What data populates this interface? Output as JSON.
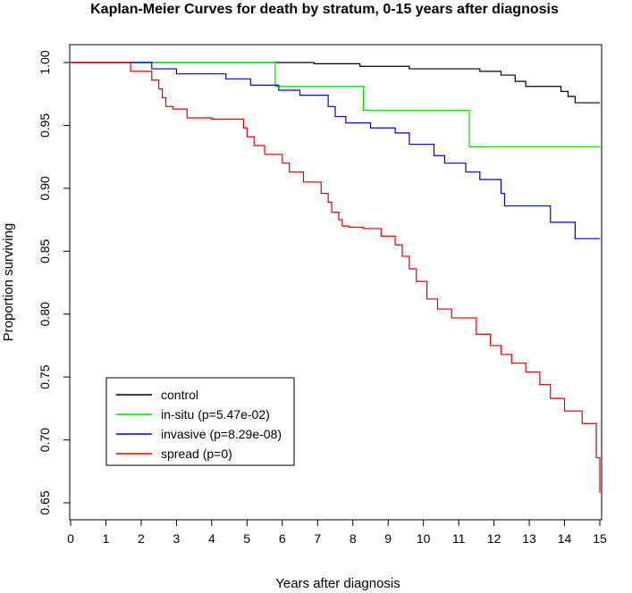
{
  "chart_data": {
    "type": "line",
    "step": true,
    "title": "Kaplan-Meier Curves for death by stratum, 0-15 years after diagnosis",
    "xlabel": "Years after diagnosis",
    "ylabel": "Proportion surviving",
    "xlim": [
      0,
      15
    ],
    "ylim": [
      0.65,
      1.0
    ],
    "xticks": [
      0,
      1,
      2,
      3,
      4,
      5,
      6,
      7,
      8,
      9,
      10,
      11,
      12,
      13,
      14,
      15
    ],
    "yticks": [
      0.65,
      0.7,
      0.75,
      0.8,
      0.85,
      0.9,
      0.95,
      1.0
    ],
    "ytick_labels": [
      "0.65",
      "0.70",
      "0.75",
      "0.80",
      "0.85",
      "0.90",
      "0.95",
      "1.00"
    ],
    "grid": false,
    "legend_position": "bottom-left",
    "series": [
      {
        "name": "control",
        "color": "#000000",
        "x": [
          0,
          6.9,
          8.2,
          9.6,
          11.6,
          12.2,
          12.6,
          12.9,
          13.9,
          14.1,
          14.3,
          15.0
        ],
        "y": [
          1.0,
          0.999,
          0.997,
          0.995,
          0.993,
          0.99,
          0.985,
          0.981,
          0.977,
          0.973,
          0.968,
          0.968
        ]
      },
      {
        "name": "in-situ (p=5.47e-02)",
        "color": "#00dd00",
        "x": [
          0,
          5.8,
          8.3,
          11.3,
          15.0
        ],
        "y": [
          1.0,
          0.981,
          0.962,
          0.933,
          0.933
        ]
      },
      {
        "name": "invasive (p=8.29e-08)",
        "color": "#0000cc",
        "x": [
          0,
          2.3,
          3.0,
          4.4,
          5.1,
          5.9,
          6.5,
          7.3,
          7.5,
          7.8,
          8.5,
          9.2,
          9.6,
          10.3,
          10.6,
          11.2,
          11.6,
          12.2,
          12.3,
          12.7,
          13.6,
          14.3,
          15.0
        ],
        "y": [
          1.0,
          0.995,
          0.991,
          0.987,
          0.982,
          0.978,
          0.974,
          0.965,
          0.957,
          0.952,
          0.948,
          0.944,
          0.935,
          0.926,
          0.92,
          0.913,
          0.907,
          0.896,
          0.886,
          0.886,
          0.873,
          0.86,
          0.86
        ]
      },
      {
        "name": "spread (p=0)",
        "color": "#dd0000",
        "x": [
          0,
          1.7,
          2.3,
          2.5,
          2.6,
          2.7,
          2.9,
          3.3,
          4.0,
          4.9,
          5.0,
          5.2,
          5.5,
          6.0,
          6.2,
          6.6,
          7.1,
          7.3,
          7.4,
          7.6,
          7.7,
          7.9,
          8.3,
          8.8,
          9.2,
          9.4,
          9.6,
          9.8,
          10.1,
          10.4,
          10.8,
          11.5,
          11.9,
          12.2,
          12.5,
          12.9,
          13.3,
          13.6,
          14.0,
          14.5,
          14.9,
          15.0
        ],
        "y": [
          1.0,
          0.993,
          0.986,
          0.979,
          0.972,
          0.965,
          0.963,
          0.956,
          0.955,
          0.948,
          0.941,
          0.934,
          0.927,
          0.92,
          0.913,
          0.905,
          0.896,
          0.889,
          0.881,
          0.875,
          0.87,
          0.869,
          0.868,
          0.862,
          0.855,
          0.846,
          0.836,
          0.826,
          0.812,
          0.804,
          0.797,
          0.784,
          0.775,
          0.768,
          0.761,
          0.754,
          0.744,
          0.733,
          0.723,
          0.713,
          0.686,
          0.658
        ]
      }
    ]
  }
}
